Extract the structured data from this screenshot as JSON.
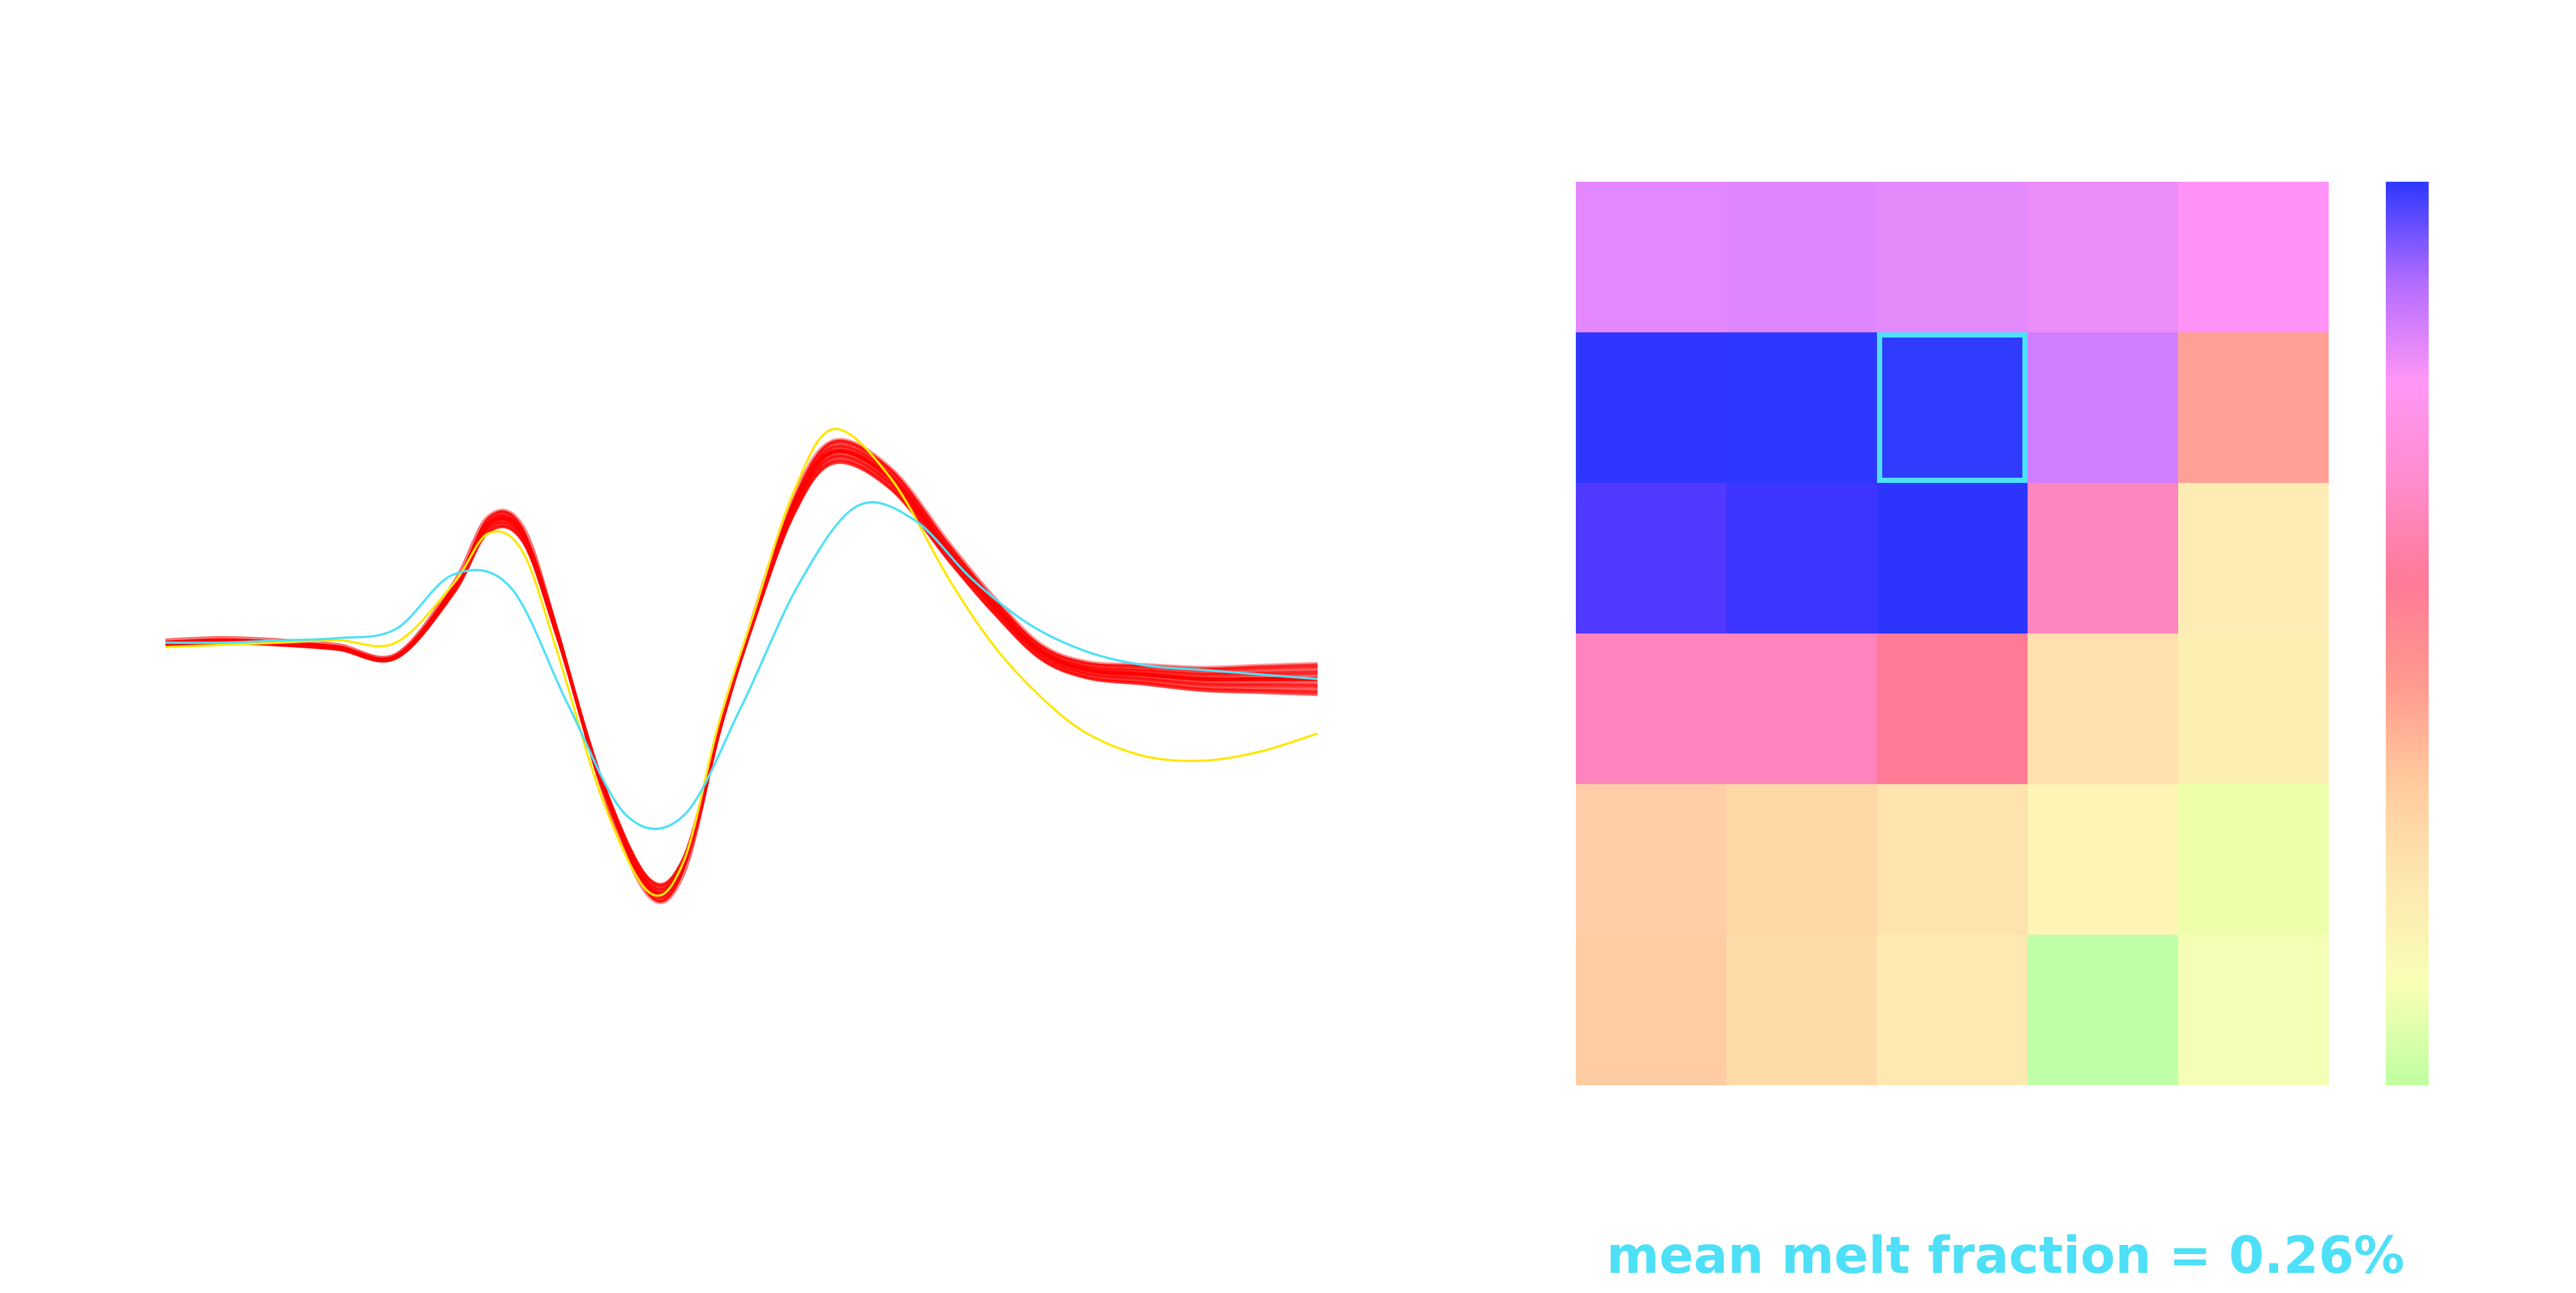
{
  "accent_color": "#4ee0f7",
  "caption": "mean melt fraction = 0.26%",
  "chart_data": [
    {
      "type": "line",
      "title": "",
      "xlabel": "",
      "ylabel": "",
      "axes_visible": false,
      "grid": false,
      "note_ensemble": "band of many red waveform realizations; highlighted curves below",
      "series": [
        {
          "color": "#ff0000",
          "x": [
            0,
            0.05,
            0.1,
            0.15,
            0.2,
            0.25,
            0.28,
            0.31,
            0.34,
            0.38,
            0.42,
            0.45,
            0.48,
            0.51,
            0.545,
            0.58,
            0.63,
            0.68,
            0.72,
            0.76,
            0.8,
            0.85,
            0.9,
            0.95,
            1.0
          ],
          "y": [
            0.0,
            0.005,
            0.0,
            -0.01,
            -0.03,
            0.12,
            0.26,
            0.24,
            0.02,
            -0.32,
            -0.54,
            -0.49,
            -0.2,
            0.05,
            0.3,
            0.42,
            0.36,
            0.2,
            0.08,
            -0.02,
            -0.06,
            -0.07,
            -0.08,
            -0.08,
            -0.08
          ]
        },
        {
          "color": "#ffe600",
          "x": [
            0,
            0.05,
            0.1,
            0.15,
            0.2,
            0.25,
            0.28,
            0.31,
            0.34,
            0.38,
            0.42,
            0.45,
            0.48,
            0.51,
            0.545,
            0.58,
            0.63,
            0.68,
            0.72,
            0.76,
            0.8,
            0.85,
            0.9,
            0.95,
            1.0
          ],
          "y": [
            -0.01,
            -0.005,
            0.0,
            0.005,
            0.0,
            0.13,
            0.24,
            0.2,
            -0.02,
            -0.35,
            -0.55,
            -0.48,
            -0.18,
            0.06,
            0.33,
            0.47,
            0.36,
            0.14,
            -0.01,
            -0.12,
            -0.2,
            -0.25,
            -0.26,
            -0.24,
            -0.2
          ]
        },
        {
          "color": "#4ee0f7",
          "x": [
            0,
            0.05,
            0.1,
            0.15,
            0.2,
            0.25,
            0.3,
            0.35,
            0.4,
            0.45,
            0.5,
            0.55,
            0.6,
            0.65,
            0.7,
            0.75,
            0.8,
            0.85,
            0.9,
            0.95,
            1.0
          ],
          "y": [
            0.0,
            0.0,
            0.005,
            0.01,
            0.03,
            0.15,
            0.12,
            -0.14,
            -0.38,
            -0.38,
            -0.14,
            0.13,
            0.3,
            0.27,
            0.14,
            0.04,
            -0.02,
            -0.05,
            -0.06,
            -0.07,
            -0.08
          ]
        }
      ]
    },
    {
      "type": "heatmap",
      "title": "",
      "rows": 6,
      "cols": 5,
      "colorbar": "right",
      "colorbar_scale": [
        "#bfffa0",
        "#f8ffb5",
        "#fde8b0",
        "#ffcb9e",
        "#ff9a8e",
        "#ff7a96",
        "#ff8ccc",
        "#ff97f5",
        "#b36cff",
        "#2d37ff"
      ],
      "highlight": {
        "row": 1,
        "col": 2,
        "color": "#4ee0f7"
      },
      "cell_colors": [
        [
          "#e588ff",
          "#df86ff",
          "#e48afa",
          "#ec8cf8",
          "#ff92f6"
        ],
        [
          "#2e36ff",
          "#2d37ff",
          "#2f3cfe",
          "#cf7eff",
          "#ffa096"
        ],
        [
          "#5139ff",
          "#3d35ff",
          "#2d35fd",
          "#ff85be",
          "#ffebb4"
        ],
        [
          "#ff84bd",
          "#ff84be",
          "#ff7a95",
          "#ffe0ae",
          "#fdeeb1"
        ],
        [
          "#ffcda7",
          "#ffd8a8",
          "#ffe3ae",
          "#fdf4b6",
          "#edffa8"
        ],
        [
          "#ffcca4",
          "#ffdba8",
          "#fee9b3",
          "#bfffa8",
          "#f4ffb5"
        ]
      ]
    }
  ]
}
